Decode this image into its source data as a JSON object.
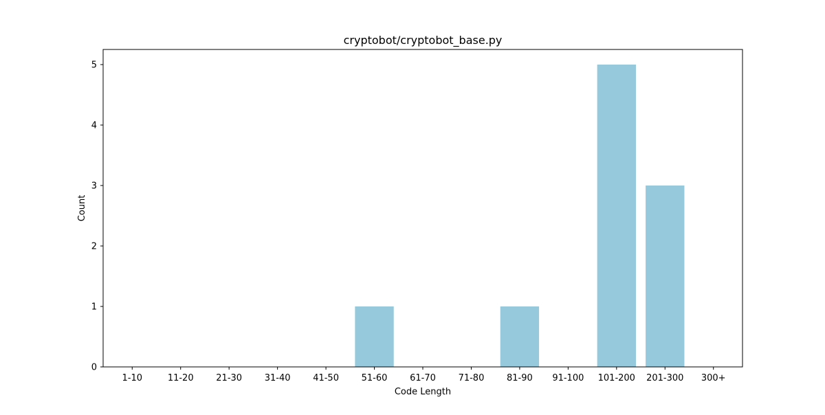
{
  "chart_data": {
    "type": "bar",
    "title": "cryptobot/cryptobot_base.py",
    "xlabel": "Code Length",
    "ylabel": "Count",
    "categories": [
      "1-10",
      "11-20",
      "21-30",
      "31-40",
      "41-50",
      "51-60",
      "61-70",
      "71-80",
      "81-90",
      "91-100",
      "101-200",
      "201-300",
      "300+"
    ],
    "values": [
      0,
      0,
      0,
      0,
      0,
      1,
      0,
      0,
      1,
      0,
      5,
      3,
      0
    ],
    "ylim": [
      0,
      5.25
    ],
    "yticks": [
      0,
      1,
      2,
      3,
      4,
      5
    ],
    "bar_color": "#96c9dc",
    "grid": false,
    "legend": "none"
  }
}
